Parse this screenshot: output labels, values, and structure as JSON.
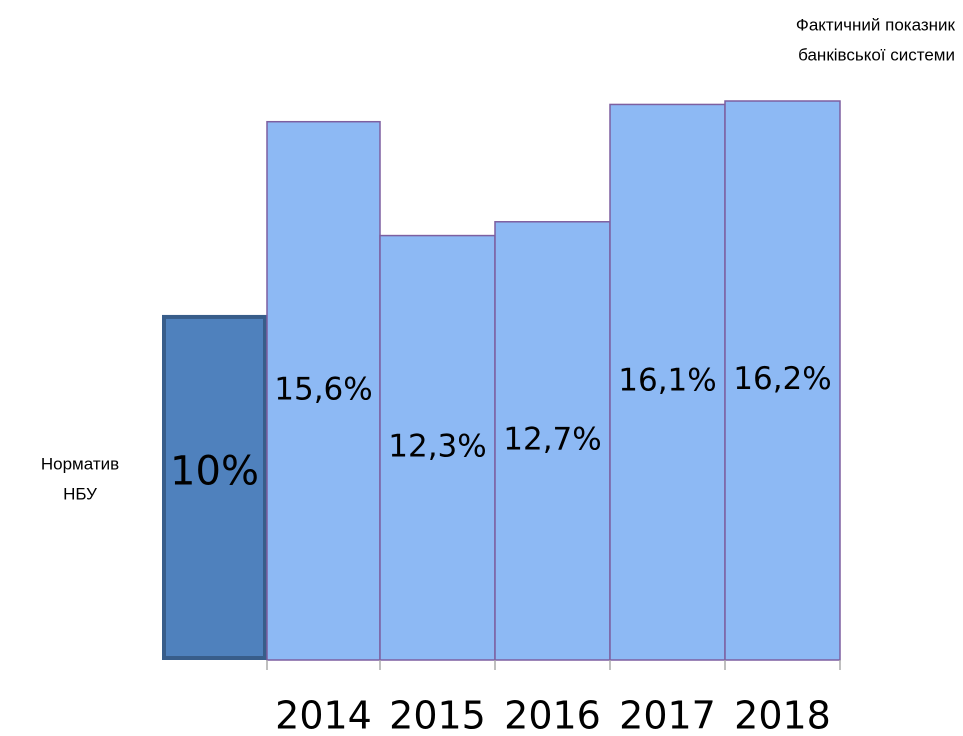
{
  "chart_data": {
    "type": "bar",
    "categories": [
      null,
      "2014",
      "2015",
      "2016",
      "2017",
      "2018"
    ],
    "values": [
      10,
      15.6,
      12.3,
      12.7,
      16.1,
      16.2
    ],
    "value_labels": [
      "10%",
      "15,6%",
      "12,3%",
      "12,7%",
      "16,1%",
      "16,2%"
    ],
    "colors": [
      "#4f81bd",
      "#8db9f4",
      "#8db9f4",
      "#8db9f4",
      "#8db9f4",
      "#8db9f4"
    ],
    "edgecolors": [
      "#385d8a",
      "#7d5fa0",
      "#7d5fa0",
      "#7d5fa0",
      "#7d5fa0",
      "#7d5fa0"
    ],
    "annotations": [
      {
        "lines": [
          "Фактичний показник",
          "банківської системи"
        ]
      },
      {
        "lines": [
          "Норматив",
          "НБУ"
        ]
      }
    ]
  }
}
